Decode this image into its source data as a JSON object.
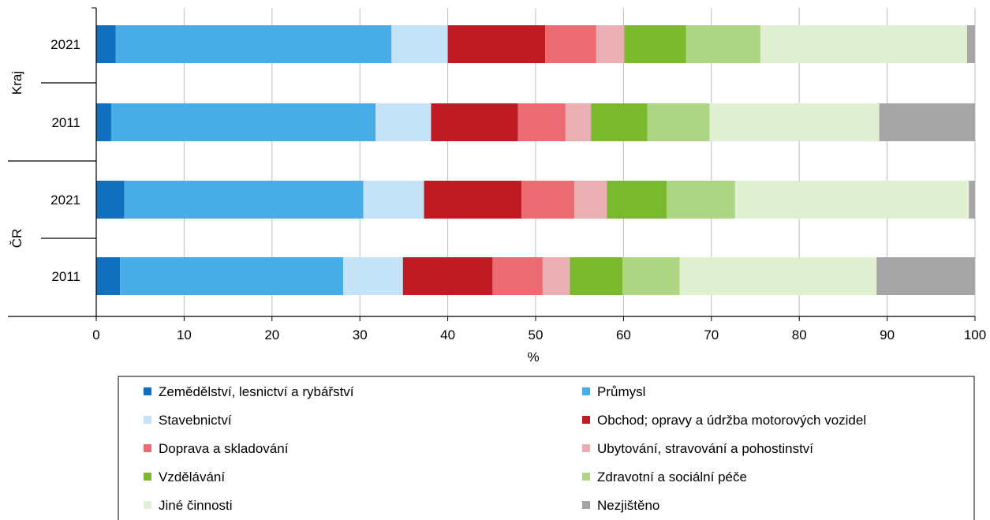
{
  "chart_data": {
    "type": "bar",
    "orientation": "horizontal",
    "stacked": true,
    "xlabel": "%",
    "xlim": [
      0,
      100
    ],
    "xticks": [
      "0",
      "10",
      "20",
      "30",
      "40",
      "50",
      "60",
      "70",
      "80",
      "90",
      "100"
    ],
    "grid": "vertical",
    "legend_position": "bottom",
    "groups": [
      {
        "label": "Kraj",
        "categories": [
          "2021",
          "2011"
        ]
      },
      {
        "label": "ČR",
        "categories": [
          "2021",
          "2011"
        ]
      }
    ],
    "categories": [
      "Kraj 2021",
      "Kraj 2011",
      "ČR 2021",
      "ČR 2011"
    ],
    "series": [
      {
        "name": "Zemědělství, lesnictví a rybářství",
        "color": "#1070BF",
        "values": [
          2.2,
          1.7,
          3.2,
          2.7
        ]
      },
      {
        "name": "Průmysl",
        "color": "#48ADE6",
        "values": [
          31.4,
          30.1,
          27.2,
          25.4
        ]
      },
      {
        "name": "Stavebnictví",
        "color": "#C4E3F6",
        "values": [
          6.4,
          6.3,
          6.9,
          6.8
        ]
      },
      {
        "name": "Obchod; opravy a údržba motorových vozidel",
        "color": "#BE1B24",
        "values": [
          11.1,
          9.9,
          11.1,
          10.2
        ]
      },
      {
        "name": "Doprava a skladování",
        "color": "#EC6B73",
        "values": [
          5.8,
          5.4,
          6.0,
          5.7
        ]
      },
      {
        "name": "Ubytování, stravování a pohostinství",
        "color": "#EAAFB2",
        "values": [
          3.2,
          2.9,
          3.7,
          3.1
        ]
      },
      {
        "name": "Vzdělávání",
        "color": "#7AB82D",
        "values": [
          7.0,
          6.4,
          6.8,
          6.0
        ]
      },
      {
        "name": "Zdravotní a sociální péče",
        "color": "#AED584",
        "values": [
          8.5,
          7.1,
          7.8,
          6.5
        ]
      },
      {
        "name": "Jiné činnosti",
        "color": "#E1EFD2",
        "values": [
          23.5,
          19.3,
          26.6,
          22.4
        ]
      },
      {
        "name": "Nezjištěno",
        "color": "#A5A5A5",
        "values": [
          0.9,
          10.9,
          0.7,
          11.2
        ]
      }
    ]
  }
}
